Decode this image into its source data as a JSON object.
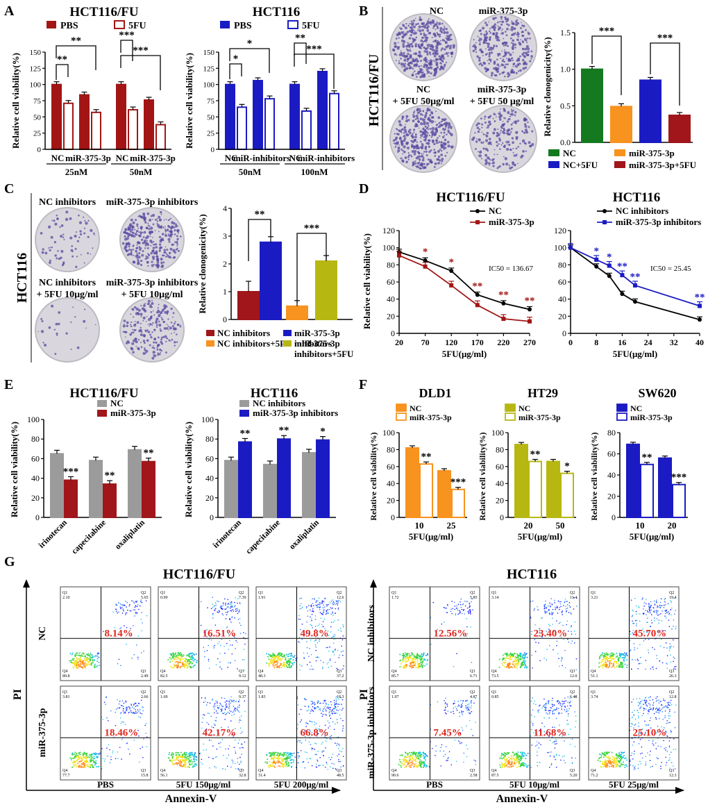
{
  "colors": {
    "fu_dark_red": "#a31515",
    "blue": "#1b1bc4",
    "gray": "#9b9b9b",
    "green": "#157a1f",
    "orange": "#f7931e",
    "dark_red": "#a0161a",
    "olive": "#b7b712",
    "purple_colony": "#5a4aa0",
    "flow_red": "#e0271f"
  },
  "panels": {
    "A": {
      "letter": "A"
    },
    "B": {
      "letter": "B"
    },
    "C": {
      "letter": "C"
    },
    "D": {
      "letter": "D"
    },
    "E": {
      "letter": "E"
    },
    "F": {
      "letter": "F"
    },
    "G": {
      "letter": "G"
    }
  },
  "panel_b_images": {
    "side_label": "HCT116/FU",
    "labels": [
      "NC",
      "miR-375-3p",
      "NC",
      "+ 5FU 50μg/ml",
      "miR-375-3p",
      "+ 5FU 50 μg/ml"
    ]
  },
  "panel_c_images": {
    "side_label": "HCT116",
    "labels": [
      "NC inhibitors",
      "miR-375-3p inhibitors",
      "NC inhibitors",
      "+ 5FU 10μg/ml",
      "miR-375-3p inhibitors",
      "+ 5FU 10μg/ml"
    ]
  },
  "panel_g": {
    "left_title": "HCT116/FU",
    "right_title": "HCT116",
    "y_axis": "PI",
    "x_axis": "Annexin-V",
    "left_rows": [
      "NC",
      "miR-375-3p"
    ],
    "right_rows": [
      "NC inhibitors",
      "miR-375-3p inhibitors"
    ],
    "left_cols": [
      "PBS",
      "5FU 150μg/ml",
      "5FU  200μg/ml"
    ],
    "right_cols": [
      "PBS",
      "5FU 10μg/ml",
      "5FU 25μg/ml"
    ],
    "left_percents": [
      [
        "8.14%",
        "16.51%",
        "49.8%"
      ],
      [
        "18.46%",
        "42.17%",
        "66.8%"
      ]
    ],
    "right_percents": [
      [
        "12.56%",
        "23.40%",
        "45.70%"
      ],
      [
        "7.45%",
        "11.68%",
        "25.10%"
      ]
    ],
    "quadrants": {
      "left": [
        [
          [
            "2.10",
            "5.65",
            "89.8",
            "2.49"
          ],
          [
            "0.99",
            "7.39",
            "82.5",
            "9.12"
          ],
          [
            "1.91",
            "12.6",
            "48.3",
            "37.2"
          ]
        ],
        [
          [
            "3.81",
            "2.66",
            "77.7",
            "15.8"
          ],
          [
            "1.69",
            "9.37",
            "56.1",
            "32.8"
          ],
          [
            "1.83",
            "18.3",
            "31.4",
            "48.5"
          ]
        ]
      ],
      "right": [
        [
          [
            "1.72",
            "5.85",
            "85.7",
            "6.71"
          ],
          [
            "3.14",
            "11.4",
            "73.5",
            "12.0"
          ],
          [
            "3.21",
            "19.4",
            "51.1",
            "26.3"
          ]
        ],
        [
          [
            "1.97",
            "4.87",
            "90.6",
            "2.58"
          ],
          [
            "0.85",
            "6.48",
            "87.5",
            "5.20"
          ],
          [
            "3.74",
            "12.8",
            "71.2",
            "12.3"
          ]
        ]
      ]
    }
  },
  "chart_data": [
    {
      "id": "A1",
      "type": "bar",
      "title": "HCT116/FU",
      "ylabel": "Relative cell viability(%)",
      "ylim": [
        0,
        150
      ],
      "yticks": [
        0,
        25,
        50,
        75,
        100,
        125,
        150
      ],
      "legend": [
        "PBS",
        "5FU"
      ],
      "bars": [
        {
          "value": 100,
          "style": "fu_dark_red",
          "filled": true
        },
        {
          "value": 71,
          "style": "fu_dark_red",
          "filled": false
        },
        {
          "value": 84,
          "style": "fu_dark_red",
          "filled": true
        },
        {
          "value": 57,
          "style": "fu_dark_red",
          "filled": false
        },
        {
          "value": 100,
          "style": "fu_dark_red",
          "filled": true
        },
        {
          "value": 61,
          "style": "fu_dark_red",
          "filled": false
        },
        {
          "value": 76,
          "style": "fu_dark_red",
          "filled": true
        },
        {
          "value": 38,
          "style": "fu_dark_red",
          "filled": false
        }
      ],
      "xlabels": [
        "NC",
        "miR-375-3p",
        "NC",
        "miR-375-3p"
      ],
      "groups": [
        "25nM",
        "50nM"
      ],
      "significance": [
        "**",
        "**",
        "***",
        "***"
      ]
    },
    {
      "id": "A2",
      "type": "bar",
      "title": "HCT116",
      "ylabel": "Relative cell viability(%)",
      "ylim": [
        0,
        150
      ],
      "yticks": [
        0,
        25,
        50,
        75,
        100,
        125,
        150
      ],
      "legend": [
        "PBS",
        "5FU"
      ],
      "bars": [
        {
          "value": 100,
          "style": "blue",
          "filled": true
        },
        {
          "value": 65,
          "style": "blue",
          "filled": false
        },
        {
          "value": 106,
          "style": "blue",
          "filled": true
        },
        {
          "value": 78,
          "style": "blue",
          "filled": false
        },
        {
          "value": 100,
          "style": "blue",
          "filled": true
        },
        {
          "value": 59,
          "style": "blue",
          "filled": false
        },
        {
          "value": 120,
          "style": "blue",
          "filled": true
        },
        {
          "value": 86,
          "style": "blue",
          "filled": false
        }
      ],
      "xlabels": [
        "NC",
        "miR-inhibitors",
        "NC",
        "miR-inhibitors"
      ],
      "groups": [
        "50nM",
        "100nM"
      ],
      "significance": [
        "*",
        "*",
        "**",
        "***"
      ]
    },
    {
      "id": "B",
      "type": "bar",
      "ylabel": "Relative clonogenicity(%)",
      "ylim": [
        0,
        1.5
      ],
      "yticks": [
        "0.0",
        "0.5",
        "1.0",
        "1.5"
      ],
      "categories": [
        "NC",
        "miR-375-3p",
        "NC+5FU",
        "miR-375-3p+5FU"
      ],
      "values": [
        1.0,
        0.49,
        0.85,
        0.37
      ],
      "bar_colors": [
        "green",
        "orange",
        "blue",
        "dark_red"
      ],
      "significance": [
        "***",
        "***"
      ]
    },
    {
      "id": "C",
      "type": "bar",
      "ylabel": "Relative clonogenicity(%)",
      "ylim": [
        0,
        4
      ],
      "yticks": [
        "0",
        "1",
        "2",
        "3",
        "4"
      ],
      "categories": [
        "NC inhibitors",
        "miR-375-3p inhibitors",
        "NC inhibitors+5FU",
        "miR-375-3p inhibitors+5FU"
      ],
      "legend_lines": [
        [
          "NC inhibitors"
        ],
        [
          "miR-375-3p",
          "inhibitors"
        ],
        [
          "NC inhibitors+5FU"
        ],
        [
          "miR-375-3p",
          "inhibitors+5FU"
        ]
      ],
      "values": [
        1.0,
        2.78,
        0.48,
        2.1
      ],
      "bar_colors": [
        "dark_red",
        "blue",
        "orange",
        "olive"
      ],
      "significance": [
        "**",
        "***"
      ]
    },
    {
      "id": "D1",
      "type": "line",
      "title": "HCT116/FU",
      "xlabel": "5FU(μg/ml)",
      "ylabel": "Relative cell viability(%)",
      "xticks": [
        "20",
        "70",
        "120",
        "170",
        "220",
        "270"
      ],
      "ylim": [
        0,
        120
      ],
      "yticks": [
        "0",
        "20",
        "40",
        "60",
        "80",
        "100",
        "120"
      ],
      "x": [
        20,
        70,
        120,
        170,
        220,
        270
      ],
      "series": [
        {
          "name": "NC",
          "values": [
            95,
            85,
            73,
            45,
            35,
            28
          ],
          "color": "#000000",
          "marker": "circle"
        },
        {
          "name": "miR-375-3p",
          "values": [
            91,
            78,
            56,
            33,
            17,
            14
          ],
          "color": "#a31515",
          "marker": "square"
        }
      ],
      "stars": [
        "",
        "*",
        "*",
        "**",
        "**",
        "**"
      ],
      "annotation": "IC50 = 136.67"
    },
    {
      "id": "D2",
      "type": "line",
      "title": "HCT116",
      "xlabel": "5FU(μg/ml)",
      "ylabel": "",
      "xticks": [
        "0",
        "8",
        "16",
        "24",
        "32",
        "40"
      ],
      "ylim": [
        0,
        120
      ],
      "yticks": [
        "0",
        "20",
        "40",
        "60",
        "80",
        "100",
        "120"
      ],
      "x": [
        0,
        8,
        12,
        16,
        20,
        40
      ],
      "series": [
        {
          "name": "NC inhibitors",
          "values": [
            100,
            78,
            67,
            46,
            37,
            16
          ],
          "color": "#000000",
          "marker": "circle"
        },
        {
          "name": "miR-375-3p inhibitors",
          "values": [
            100,
            86,
            79,
            68,
            56,
            32
          ],
          "color": "#1b1bc4",
          "marker": "square"
        }
      ],
      "stars": [
        "",
        "*",
        "*",
        "**",
        "**",
        "**"
      ],
      "annotation": "IC50 = 25.45"
    },
    {
      "id": "E1",
      "type": "bar",
      "title": "HCT116/FU",
      "ylabel": "Relative cell viability(%)",
      "ylim": [
        0,
        100
      ],
      "yticks": [
        "0",
        "20",
        "40",
        "60",
        "80",
        "100"
      ],
      "categories": [
        "irinotecan",
        "capecitabine",
        "oxaliplatin"
      ],
      "series": [
        {
          "name": "NC",
          "values": [
            65,
            58,
            69
          ],
          "color": "gray"
        },
        {
          "name": "miR-375-3p",
          "values": [
            38,
            34,
            57
          ],
          "color": "dark_red"
        }
      ],
      "significance": [
        "***",
        "**",
        "**"
      ]
    },
    {
      "id": "E2",
      "type": "bar",
      "title": "HCT116",
      "ylabel": "Relative cell viability(%)",
      "ylim": [
        0,
        100
      ],
      "yticks": [
        "0",
        "20",
        "40",
        "60",
        "80",
        "100"
      ],
      "categories": [
        "irinotecan",
        "capecitabine",
        "oxaliplatin"
      ],
      "series": [
        {
          "name": "NC inhibitors",
          "values": [
            58,
            54,
            66
          ],
          "color": "gray"
        },
        {
          "name": "miR-375-3p inhibitors",
          "values": [
            77,
            80,
            79
          ],
          "color": "blue"
        }
      ],
      "significance": [
        "**",
        "**",
        "*"
      ]
    },
    {
      "id": "F1",
      "type": "bar",
      "title": "DLD1",
      "xlabel": "5FU(μg/ml)",
      "ylabel": "Relative cell viability(%)",
      "ylim": [
        0,
        100
      ],
      "yticks": [
        "0",
        "20",
        "40",
        "60",
        "80",
        "100"
      ],
      "categories": [
        "10",
        "25"
      ],
      "series": [
        {
          "name": "NC",
          "values": [
            82,
            55
          ],
          "color": "orange",
          "filled": true
        },
        {
          "name": "miR-375-3p",
          "values": [
            63,
            33
          ],
          "color": "orange",
          "filled": false
        }
      ],
      "significance": [
        "**",
        "***"
      ]
    },
    {
      "id": "F2",
      "type": "bar",
      "title": "HT29",
      "xlabel": "5FU(μg/ml)",
      "ylabel": "Relative cell viability(%)",
      "ylim": [
        0,
        100
      ],
      "yticks": [
        "0",
        "20",
        "40",
        "60",
        "80",
        "100"
      ],
      "categories": [
        "20",
        "50"
      ],
      "series": [
        {
          "name": "NC",
          "values": [
            86,
            66
          ],
          "color": "olive",
          "filled": true
        },
        {
          "name": "miR-375-3p",
          "values": [
            66,
            52
          ],
          "color": "olive",
          "filled": false
        }
      ],
      "significance": [
        "**",
        "*"
      ]
    },
    {
      "id": "F3",
      "type": "bar",
      "title": "SW620",
      "xlabel": "5FU(μg/ml)",
      "ylabel": "Relative cell viability(%)",
      "ylim": [
        0,
        80
      ],
      "yticks": [
        "0",
        "20",
        "40",
        "60",
        "80"
      ],
      "categories": [
        "10",
        "20"
      ],
      "series": [
        {
          "name": "NC",
          "values": [
            69,
            56
          ],
          "color": "blue",
          "filled": true
        },
        {
          "name": "miR-375-3p",
          "values": [
            50,
            31
          ],
          "color": "blue",
          "filled": false
        }
      ],
      "significance": [
        "**",
        "***"
      ]
    }
  ]
}
